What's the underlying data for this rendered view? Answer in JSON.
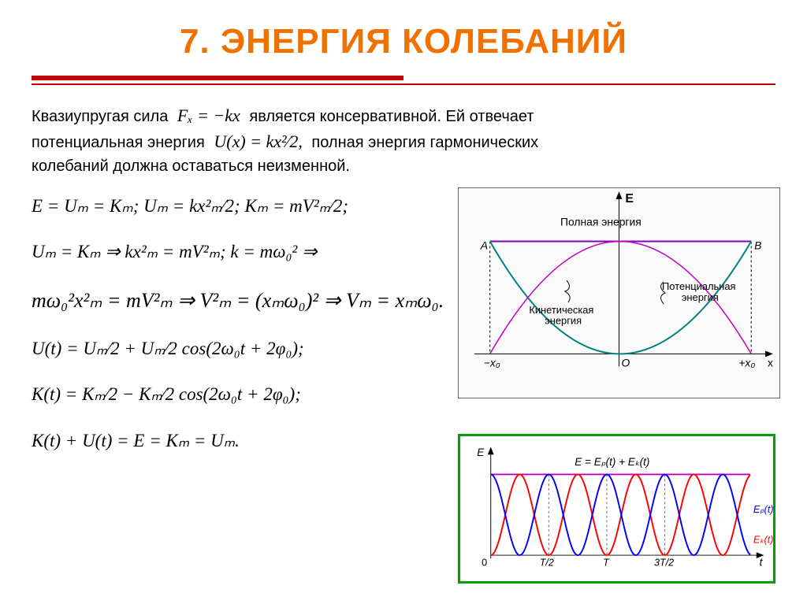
{
  "title": {
    "text": "7. ЭНЕРГИЯ КОЛЕБАНИЙ",
    "color": "#f07000"
  },
  "rule_color": "#c00000",
  "intro": {
    "line1_a": "Квазиупругая сила ",
    "force_eq": "Fₓ = −kx",
    "line1_b": " является консервативной. Ей отвечает",
    "line2_a": "потенциальная энергия ",
    "u_eq": "U(x) = kx²⁄2,",
    "line2_b": "  полная энергия гармонических",
    "line3": "колебаний должна оставаться неизменной."
  },
  "equations": {
    "a": "E = Uₘ = Kₘ;   Uₘ = kx²ₘ⁄2;   Kₘ = mV²ₘ⁄2;",
    "b": "Uₘ = Kₘ ⇒   kx²ₘ = mV²ₘ;   k = mω₀² ⇒",
    "c": "mω₀²x²ₘ = mV²ₘ ⇒  V²ₘ = (xₘω₀)² ⇒ Vₘ = xₘω₀.",
    "d": "U(t) = Uₘ⁄2 + Uₘ⁄2 cos(2ω₀t + 2φ₀);",
    "e": "K(t) = Kₘ⁄2 − Kₘ⁄2 cos(2ω₀t + 2φ₀);",
    "f": "K(t) + U(t) = E = Kₘ = Uₘ."
  },
  "fig1": {
    "type": "energy-diagram",
    "title_E": "E",
    "label_total": "Полная энергия",
    "label_kin": "Кинетическая энергия",
    "label_pot": "Потенциальная энергия",
    "x_left": "−x₀",
    "x_right": "+x₀",
    "origin": "O",
    "axis_x": "x",
    "point_A": "A",
    "point_B": "B",
    "col_parabola": "#008080",
    "col_kin": "#c000c0",
    "col_total": "#8000c0",
    "col_axis": "#000"
  },
  "fig2": {
    "type": "energy-vs-time",
    "border_color": "#00a000",
    "axis_E": "E",
    "axis_t": "t",
    "ticks": [
      "T/2",
      "T",
      "3T/2"
    ],
    "label_total": "E = Eₚ(t) + Eₖ(t)",
    "label_Ep": "Eₚ(t)",
    "label_Ek": "Eₖ(t)",
    "col_Ep": "#0000ff",
    "col_Ek": "#ff0000",
    "col_total": "#c000c0",
    "amplitude_top": 1.0,
    "periods": 4.5
  }
}
